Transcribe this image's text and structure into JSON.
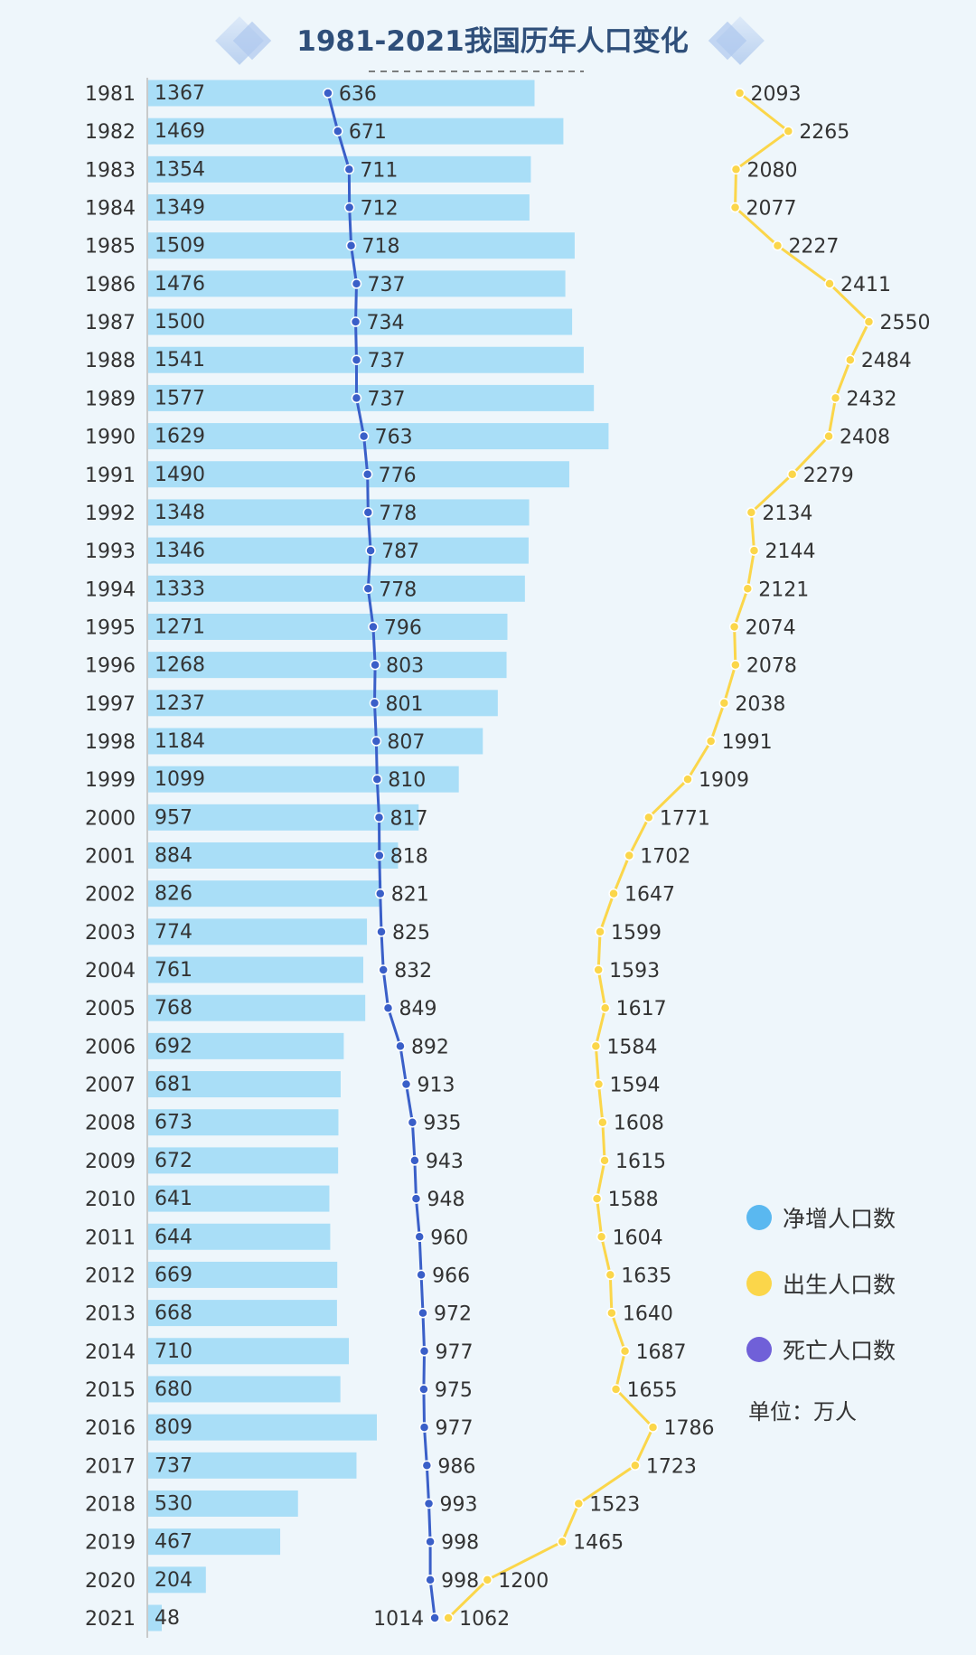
{
  "chart_data": {
    "type": "bar",
    "title": "1981-2021我国历年人口变化",
    "categories": [
      "1981",
      "1982",
      "1983",
      "1984",
      "1985",
      "1986",
      "1987",
      "1988",
      "1989",
      "1990",
      "1991",
      "1992",
      "1993",
      "1994",
      "1995",
      "1996",
      "1997",
      "1998",
      "1999",
      "2000",
      "2001",
      "2002",
      "2003",
      "2004",
      "2005",
      "2006",
      "2007",
      "2008",
      "2009",
      "2010",
      "2011",
      "2012",
      "2013",
      "2014",
      "2015",
      "2016",
      "2017",
      "2018",
      "2019",
      "2020",
      "2021"
    ],
    "series": [
      {
        "name": "净增人口数",
        "type": "bar",
        "color": "#a9def7",
        "values": [
          1367,
          1469,
          1354,
          1349,
          1509,
          1476,
          1500,
          1541,
          1577,
          1629,
          1490,
          1348,
          1346,
          1333,
          1271,
          1268,
          1237,
          1184,
          1099,
          957,
          884,
          826,
          774,
          761,
          768,
          692,
          681,
          673,
          672,
          641,
          644,
          669,
          668,
          710,
          680,
          809,
          737,
          530,
          467,
          204,
          48
        ]
      },
      {
        "name": "出生人口数",
        "type": "line",
        "color": "#fbd64a",
        "values": [
          2093,
          2265,
          2080,
          2077,
          2227,
          2411,
          2550,
          2484,
          2432,
          2408,
          2279,
          2134,
          2144,
          2121,
          2074,
          2078,
          2038,
          1991,
          1909,
          1771,
          1702,
          1647,
          1599,
          1593,
          1617,
          1584,
          1594,
          1608,
          1615,
          1588,
          1604,
          1635,
          1640,
          1687,
          1655,
          1786,
          1723,
          1523,
          1465,
          1200,
          1062
        ]
      },
      {
        "name": "死亡人口数",
        "type": "line",
        "color": "#3a5fc8",
        "values": [
          636,
          671,
          711,
          712,
          718,
          737,
          734,
          737,
          737,
          763,
          776,
          778,
          787,
          778,
          796,
          803,
          801,
          807,
          810,
          817,
          818,
          821,
          825,
          832,
          849,
          892,
          913,
          935,
          943,
          948,
          960,
          966,
          972,
          977,
          975,
          977,
          986,
          993,
          998,
          998,
          1014
        ]
      }
    ],
    "legend": {
      "placement": "right",
      "items": [
        {
          "label": "净增人口数",
          "color": "#5ab8f0"
        },
        {
          "label": "出生人口数",
          "color": "#fbd64a"
        },
        {
          "label": "死亡人口数",
          "color": "#7060d8"
        }
      ],
      "unit": "单位：万人"
    },
    "orientation": "horizontal",
    "xlim": [
      0,
      2750
    ]
  }
}
